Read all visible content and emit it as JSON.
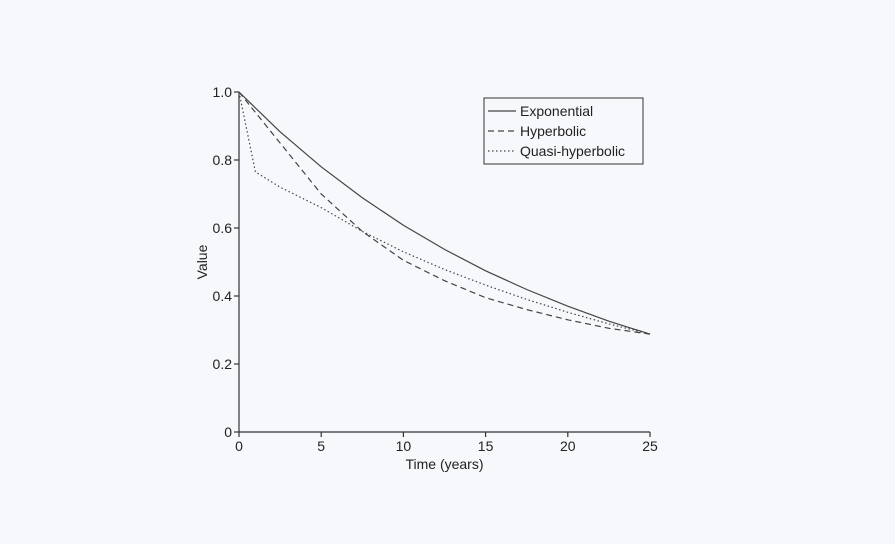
{
  "chart_data": {
    "type": "line",
    "title": "",
    "xlabel": "Time (years)",
    "ylabel": "Value",
    "xlim": [
      0,
      25
    ],
    "ylim": [
      0,
      1.0
    ],
    "x_ticks": [
      "0",
      "5",
      "10",
      "15",
      "20",
      "25"
    ],
    "y_ticks": [
      "0",
      "0.2",
      "0.4",
      "0.6",
      "0.8",
      "1.0"
    ],
    "grid": false,
    "legend_position": "top-right",
    "series": [
      {
        "name": "Exponential",
        "style": "solid",
        "x": [
          0,
          2.5,
          5,
          7.5,
          10,
          12.5,
          15,
          17.5,
          20,
          22.5,
          25
        ],
        "y": [
          1.0,
          0.883,
          0.78,
          0.689,
          0.608,
          0.537,
          0.474,
          0.419,
          0.37,
          0.326,
          0.288
        ]
      },
      {
        "name": "Hyperbolic",
        "style": "dashed",
        "x": [
          0,
          1,
          2.5,
          5,
          7.5,
          10,
          12.5,
          15,
          17.5,
          20,
          22.5,
          25
        ],
        "y": [
          1.0,
          0.94,
          0.85,
          0.7,
          0.59,
          0.505,
          0.445,
          0.395,
          0.36,
          0.33,
          0.305,
          0.288
        ]
      },
      {
        "name": "Quasi-hyperbolic",
        "style": "dotted",
        "x": [
          0,
          1,
          2.5,
          5,
          7.5,
          10,
          12.5,
          15,
          17.5,
          20,
          22.5,
          25
        ],
        "y": [
          1.0,
          0.765,
          0.72,
          0.66,
          0.59,
          0.53,
          0.478,
          0.432,
          0.39,
          0.352,
          0.318,
          0.288
        ]
      }
    ]
  }
}
